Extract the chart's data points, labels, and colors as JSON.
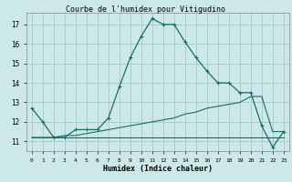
{
  "title": "Courbe de l'humidex pour Vitigudino",
  "xlabel": "Humidex (Indice chaleur)",
  "bg_color": "#cce8e8",
  "grid_color": "#aacccc",
  "line_color": "#1a6b6b",
  "xlim": [
    -0.5,
    23.5
  ],
  "ylim": [
    10.5,
    17.6
  ],
  "yticks": [
    11,
    12,
    13,
    14,
    15,
    16,
    17
  ],
  "xticks": [
    0,
    1,
    2,
    3,
    4,
    5,
    6,
    7,
    8,
    9,
    10,
    11,
    12,
    13,
    14,
    15,
    16,
    17,
    18,
    19,
    20,
    21,
    22,
    23
  ],
  "xtick_labels": [
    "0",
    "1",
    "2",
    "3",
    "4",
    "5",
    "6",
    "7",
    "8",
    "9",
    "10",
    "11",
    "12",
    "13",
    "14",
    "15",
    "16",
    "17",
    "18",
    "19",
    "20",
    "21",
    "22",
    "23"
  ],
  "main_x": [
    0,
    1,
    2,
    3,
    4,
    5,
    6,
    7,
    8,
    9,
    10,
    11,
    12,
    13,
    14,
    15,
    16,
    17,
    18,
    19,
    20,
    21,
    22,
    23
  ],
  "main_y": [
    12.7,
    12.0,
    11.2,
    11.2,
    11.6,
    11.6,
    11.6,
    12.2,
    13.8,
    15.3,
    16.4,
    17.3,
    17.0,
    17.0,
    16.1,
    15.3,
    14.6,
    14.0,
    14.0,
    13.5,
    13.5,
    11.8,
    10.7,
    11.5
  ],
  "flat_x": [
    0,
    1,
    2,
    3,
    4,
    5,
    6,
    7,
    8,
    9,
    10,
    11,
    12,
    13,
    14,
    15,
    16,
    17,
    18,
    19,
    20,
    21,
    22,
    23
  ],
  "flat_y": [
    11.2,
    11.2,
    11.2,
    11.2,
    11.2,
    11.2,
    11.2,
    11.2,
    11.2,
    11.2,
    11.2,
    11.2,
    11.2,
    11.2,
    11.2,
    11.2,
    11.2,
    11.2,
    11.2,
    11.2,
    11.2,
    11.2,
    11.2,
    11.2
  ],
  "rise_x": [
    0,
    1,
    2,
    3,
    4,
    5,
    6,
    7,
    8,
    9,
    10,
    11,
    12,
    13,
    14,
    15,
    16,
    17,
    18,
    19,
    20,
    21,
    22,
    23
  ],
  "rise_y": [
    11.2,
    11.2,
    11.2,
    11.3,
    11.3,
    11.4,
    11.5,
    11.6,
    11.7,
    11.8,
    11.9,
    12.0,
    12.1,
    12.2,
    12.4,
    12.5,
    12.7,
    12.8,
    12.9,
    13.0,
    13.3,
    13.3,
    11.5,
    11.5
  ]
}
